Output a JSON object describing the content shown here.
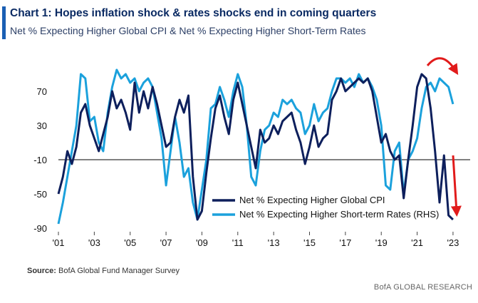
{
  "header": {
    "title": "Chart 1: Hopes inflation shock & rates shocks end in coming quarters",
    "subtitle": "Net % Expecting Higher Global CPI & Net % Expecting Higher Short-Term Rates"
  },
  "footer": {
    "source_label": "Source:",
    "source_text": "BofA Global Fund Manager Survey",
    "brand": "BofA GLOBAL RESEARCH"
  },
  "colors": {
    "cpi": "#0d1f5c",
    "rates": "#1ba1dc",
    "arrow": "#e11b1b",
    "accent": "#1a5fb4"
  },
  "chart_data": {
    "type": "line",
    "title": "Chart 1: Hopes inflation shock & rates shocks end in coming quarters",
    "subtitle": "Net % Expecting Higher Global CPI & Net % Expecting Higher Short-Term Rates",
    "xlim": [
      2001.0,
      2023.4
    ],
    "ylim": [
      -90,
      105
    ],
    "x_ticks": [
      2001,
      2003,
      2005,
      2007,
      2009,
      2011,
      2013,
      2015,
      2017,
      2019,
      2021,
      2023
    ],
    "x_tick_labels": [
      "'01",
      "'03",
      "'05",
      "'07",
      "'09",
      "'11",
      "'13",
      "'15",
      "'17",
      "'19",
      "'21",
      "'23"
    ],
    "y_ticks": [
      70,
      30,
      -10,
      -50,
      -90
    ],
    "y_tick_labels": [
      "70",
      "30",
      "-10",
      "-50",
      "-90"
    ],
    "zero_line": -10,
    "legend_position": "bottom-right",
    "grid": false,
    "series": [
      {
        "name": "Net % Expecting Higher Global CPI",
        "color": "#0d1f5c",
        "points": [
          [
            2001.0,
            -50
          ],
          [
            2001.25,
            -30
          ],
          [
            2001.5,
            0
          ],
          [
            2001.75,
            -15
          ],
          [
            2002.0,
            5
          ],
          [
            2002.25,
            45
          ],
          [
            2002.5,
            55
          ],
          [
            2002.75,
            30
          ],
          [
            2003.0,
            15
          ],
          [
            2003.25,
            0
          ],
          [
            2003.5,
            20
          ],
          [
            2003.75,
            40
          ],
          [
            2004.0,
            70
          ],
          [
            2004.25,
            50
          ],
          [
            2004.5,
            60
          ],
          [
            2004.75,
            45
          ],
          [
            2005.0,
            25
          ],
          [
            2005.25,
            80
          ],
          [
            2005.5,
            45
          ],
          [
            2005.75,
            70
          ],
          [
            2006.0,
            50
          ],
          [
            2006.25,
            75
          ],
          [
            2006.5,
            55
          ],
          [
            2006.75,
            30
          ],
          [
            2007.0,
            5
          ],
          [
            2007.25,
            10
          ],
          [
            2007.5,
            40
          ],
          [
            2007.75,
            60
          ],
          [
            2008.0,
            45
          ],
          [
            2008.25,
            65
          ],
          [
            2008.5,
            -30
          ],
          [
            2008.75,
            -80
          ],
          [
            2009.0,
            -70
          ],
          [
            2009.25,
            -25
          ],
          [
            2009.5,
            15
          ],
          [
            2009.75,
            50
          ],
          [
            2010.0,
            65
          ],
          [
            2010.25,
            40
          ],
          [
            2010.5,
            20
          ],
          [
            2010.75,
            60
          ],
          [
            2011.0,
            80
          ],
          [
            2011.25,
            55
          ],
          [
            2011.5,
            30
          ],
          [
            2011.75,
            5
          ],
          [
            2012.0,
            -20
          ],
          [
            2012.25,
            25
          ],
          [
            2012.5,
            10
          ],
          [
            2012.75,
            15
          ],
          [
            2013.0,
            30
          ],
          [
            2013.25,
            20
          ],
          [
            2013.5,
            35
          ],
          [
            2013.75,
            40
          ],
          [
            2014.0,
            45
          ],
          [
            2014.25,
            25
          ],
          [
            2014.5,
            10
          ],
          [
            2014.75,
            -15
          ],
          [
            2015.0,
            5
          ],
          [
            2015.25,
            30
          ],
          [
            2015.5,
            5
          ],
          [
            2015.75,
            15
          ],
          [
            2016.0,
            20
          ],
          [
            2016.25,
            60
          ],
          [
            2016.5,
            70
          ],
          [
            2016.75,
            85
          ],
          [
            2017.0,
            70
          ],
          [
            2017.25,
            75
          ],
          [
            2017.5,
            80
          ],
          [
            2017.75,
            85
          ],
          [
            2018.0,
            80
          ],
          [
            2018.25,
            85
          ],
          [
            2018.5,
            70
          ],
          [
            2018.75,
            40
          ],
          [
            2019.0,
            10
          ],
          [
            2019.25,
            20
          ],
          [
            2019.5,
            0
          ],
          [
            2019.75,
            -10
          ],
          [
            2020.0,
            -5
          ],
          [
            2020.25,
            -55
          ],
          [
            2020.5,
            -10
          ],
          [
            2020.75,
            30
          ],
          [
            2021.0,
            75
          ],
          [
            2021.25,
            90
          ],
          [
            2021.5,
            85
          ],
          [
            2021.75,
            50
          ],
          [
            2022.0,
            0
          ],
          [
            2022.25,
            -60
          ],
          [
            2022.5,
            -5
          ],
          [
            2022.75,
            -75
          ],
          [
            2023.0,
            -80
          ]
        ]
      },
      {
        "name": "Net % Expecting Higher Short-term Rates (RHS)",
        "color": "#1ba1dc",
        "points": [
          [
            2001.0,
            -85
          ],
          [
            2001.25,
            -60
          ],
          [
            2001.5,
            -30
          ],
          [
            2001.75,
            0
          ],
          [
            2002.0,
            30
          ],
          [
            2002.25,
            90
          ],
          [
            2002.5,
            85
          ],
          [
            2002.75,
            35
          ],
          [
            2003.0,
            40
          ],
          [
            2003.25,
            10
          ],
          [
            2003.5,
            0
          ],
          [
            2003.75,
            45
          ],
          [
            2004.0,
            75
          ],
          [
            2004.25,
            95
          ],
          [
            2004.5,
            85
          ],
          [
            2004.75,
            90
          ],
          [
            2005.0,
            80
          ],
          [
            2005.25,
            85
          ],
          [
            2005.5,
            70
          ],
          [
            2005.75,
            80
          ],
          [
            2006.0,
            85
          ],
          [
            2006.25,
            75
          ],
          [
            2006.5,
            45
          ],
          [
            2006.75,
            15
          ],
          [
            2007.0,
            -40
          ],
          [
            2007.25,
            0
          ],
          [
            2007.5,
            40
          ],
          [
            2007.75,
            10
          ],
          [
            2008.0,
            -30
          ],
          [
            2008.25,
            -20
          ],
          [
            2008.5,
            -60
          ],
          [
            2008.75,
            -80
          ],
          [
            2009.0,
            -45
          ],
          [
            2009.25,
            -10
          ],
          [
            2009.5,
            50
          ],
          [
            2009.75,
            55
          ],
          [
            2010.0,
            75
          ],
          [
            2010.25,
            60
          ],
          [
            2010.5,
            40
          ],
          [
            2010.75,
            70
          ],
          [
            2011.0,
            90
          ],
          [
            2011.25,
            75
          ],
          [
            2011.5,
            30
          ],
          [
            2011.75,
            -30
          ],
          [
            2012.0,
            -40
          ],
          [
            2012.25,
            0
          ],
          [
            2012.5,
            25
          ],
          [
            2012.75,
            30
          ],
          [
            2013.0,
            45
          ],
          [
            2013.25,
            40
          ],
          [
            2013.5,
            60
          ],
          [
            2013.75,
            55
          ],
          [
            2014.0,
            60
          ],
          [
            2014.25,
            50
          ],
          [
            2014.5,
            45
          ],
          [
            2014.75,
            20
          ],
          [
            2015.0,
            30
          ],
          [
            2015.25,
            55
          ],
          [
            2015.5,
            35
          ],
          [
            2015.75,
            45
          ],
          [
            2016.0,
            50
          ],
          [
            2016.25,
            70
          ],
          [
            2016.5,
            85
          ],
          [
            2016.75,
            85
          ],
          [
            2017.0,
            80
          ],
          [
            2017.25,
            85
          ],
          [
            2017.5,
            75
          ],
          [
            2017.75,
            90
          ],
          [
            2018.0,
            80
          ],
          [
            2018.25,
            85
          ],
          [
            2018.5,
            75
          ],
          [
            2018.75,
            60
          ],
          [
            2019.0,
            30
          ],
          [
            2019.25,
            -40
          ],
          [
            2019.5,
            -45
          ],
          [
            2019.75,
            0
          ],
          [
            2020.0,
            10
          ],
          [
            2020.25,
            -50
          ],
          [
            2020.5,
            -10
          ],
          [
            2020.75,
            0
          ],
          [
            2021.0,
            15
          ],
          [
            2021.25,
            50
          ],
          [
            2021.5,
            75
          ],
          [
            2021.75,
            80
          ],
          [
            2022.0,
            70
          ],
          [
            2022.25,
            85
          ],
          [
            2022.5,
            80
          ],
          [
            2022.75,
            75
          ],
          [
            2023.0,
            55
          ]
        ]
      }
    ]
  }
}
